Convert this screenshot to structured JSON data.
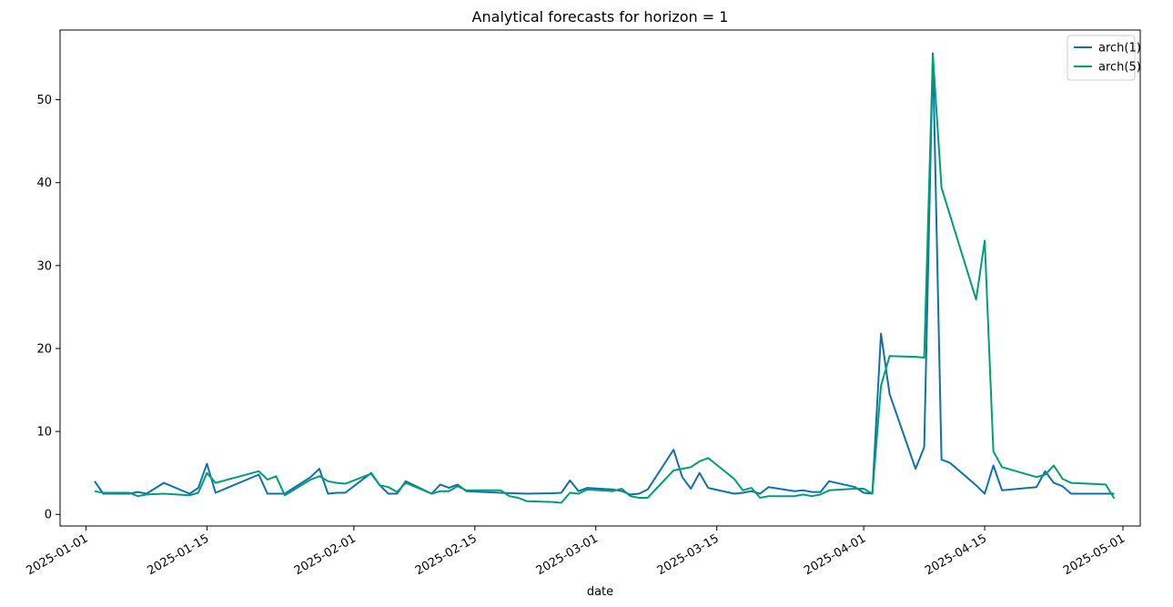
{
  "chart_data": {
    "type": "line",
    "title": "Analytical forecasts for horizon = 1",
    "xlabel": "date",
    "ylabel": "",
    "x_type": "date",
    "xlim": [
      "2024-12-29",
      "2025-05-03"
    ],
    "ylim": [
      -1.4,
      58.4
    ],
    "yticks": [
      0,
      10,
      20,
      30,
      40,
      50
    ],
    "xticks": [
      "2025-01-01",
      "2025-01-15",
      "2025-02-01",
      "2025-02-15",
      "2025-03-01",
      "2025-03-15",
      "2025-04-01",
      "2025-04-15",
      "2025-05-01"
    ],
    "legend_position": "top-right",
    "grid": false,
    "series": [
      {
        "name": "arch(1)",
        "color": "#1170aa",
        "points": [
          [
            "2025-01-02",
            4.0
          ],
          [
            "2025-01-03",
            2.5
          ],
          [
            "2025-01-06",
            2.5
          ],
          [
            "2025-01-07",
            2.7
          ],
          [
            "2025-01-08",
            2.5
          ],
          [
            "2025-01-10",
            3.8
          ],
          [
            "2025-01-13",
            2.5
          ],
          [
            "2025-01-14",
            3.2
          ],
          [
            "2025-01-15",
            6.1
          ],
          [
            "2025-01-16",
            2.6
          ],
          [
            "2025-01-21",
            4.8
          ],
          [
            "2025-01-22",
            2.5
          ],
          [
            "2025-01-23",
            2.5
          ],
          [
            "2025-01-24",
            2.5
          ],
          [
            "2025-01-27",
            4.5
          ],
          [
            "2025-01-28",
            5.5
          ],
          [
            "2025-01-29",
            2.5
          ],
          [
            "2025-01-30",
            2.6
          ],
          [
            "2025-01-31",
            2.6
          ],
          [
            "2025-02-03",
            5.0
          ],
          [
            "2025-02-04",
            3.5
          ],
          [
            "2025-02-05",
            2.5
          ],
          [
            "2025-02-06",
            2.5
          ],
          [
            "2025-02-07",
            4.0
          ],
          [
            "2025-02-10",
            2.5
          ],
          [
            "2025-02-11",
            3.6
          ],
          [
            "2025-02-12",
            3.2
          ],
          [
            "2025-02-13",
            3.6
          ],
          [
            "2025-02-14",
            2.8
          ],
          [
            "2025-02-18",
            2.6
          ],
          [
            "2025-02-21",
            2.5
          ],
          [
            "2025-02-24",
            2.55
          ],
          [
            "2025-02-25",
            2.6
          ],
          [
            "2025-02-26",
            4.1
          ],
          [
            "2025-02-27",
            2.8
          ],
          [
            "2025-02-28",
            3.2
          ],
          [
            "2025-03-03",
            3.0
          ],
          [
            "2025-03-04",
            2.8
          ],
          [
            "2025-03-05",
            2.4
          ],
          [
            "2025-03-06",
            2.5
          ],
          [
            "2025-03-07",
            3.0
          ],
          [
            "2025-03-10",
            7.8
          ],
          [
            "2025-03-11",
            4.5
          ],
          [
            "2025-03-12",
            3.1
          ],
          [
            "2025-03-13",
            5.0
          ],
          [
            "2025-03-14",
            3.2
          ],
          [
            "2025-03-17",
            2.5
          ],
          [
            "2025-03-18",
            2.6
          ],
          [
            "2025-03-19",
            2.8
          ],
          [
            "2025-03-20",
            2.5
          ],
          [
            "2025-03-21",
            3.3
          ],
          [
            "2025-03-24",
            2.8
          ],
          [
            "2025-03-25",
            2.9
          ],
          [
            "2025-03-26",
            2.7
          ],
          [
            "2025-03-27",
            2.7
          ],
          [
            "2025-03-28",
            4.0
          ],
          [
            "2025-03-31",
            3.3
          ],
          [
            "2025-04-01",
            2.6
          ],
          [
            "2025-04-02",
            2.5
          ],
          [
            "2025-04-03",
            21.8
          ],
          [
            "2025-04-04",
            14.5
          ],
          [
            "2025-04-07",
            5.5
          ],
          [
            "2025-04-08",
            8.1
          ],
          [
            "2025-04-09",
            55.6
          ],
          [
            "2025-04-10",
            6.6
          ],
          [
            "2025-04-11",
            6.2
          ],
          [
            "2025-04-14",
            3.5
          ],
          [
            "2025-04-15",
            2.5
          ],
          [
            "2025-04-16",
            5.9
          ],
          [
            "2025-04-17",
            2.9
          ],
          [
            "2025-04-21",
            3.3
          ],
          [
            "2025-04-22",
            5.2
          ],
          [
            "2025-04-23",
            3.8
          ],
          [
            "2025-04-24",
            3.4
          ],
          [
            "2025-04-25",
            2.5
          ],
          [
            "2025-04-28",
            2.5
          ],
          [
            "2025-04-29",
            2.5
          ],
          [
            "2025-04-30",
            2.5
          ]
        ]
      },
      {
        "name": "arch(5)",
        "color": "#009e73",
        "points": [
          [
            "2025-01-02",
            2.8
          ],
          [
            "2025-01-03",
            2.6
          ],
          [
            "2025-01-06",
            2.6
          ],
          [
            "2025-01-07",
            2.2
          ],
          [
            "2025-01-08",
            2.4
          ],
          [
            "2025-01-10",
            2.5
          ],
          [
            "2025-01-13",
            2.3
          ],
          [
            "2025-01-14",
            2.6
          ],
          [
            "2025-01-15",
            5.0
          ],
          [
            "2025-01-16",
            3.8
          ],
          [
            "2025-01-21",
            5.2
          ],
          [
            "2025-01-22",
            4.2
          ],
          [
            "2025-01-23",
            4.6
          ],
          [
            "2025-01-24",
            2.3
          ],
          [
            "2025-01-27",
            4.2
          ],
          [
            "2025-01-28",
            4.6
          ],
          [
            "2025-01-29",
            4.0
          ],
          [
            "2025-01-30",
            3.8
          ],
          [
            "2025-01-31",
            3.7
          ],
          [
            "2025-02-03",
            4.9
          ],
          [
            "2025-02-04",
            3.5
          ],
          [
            "2025-02-05",
            3.3
          ],
          [
            "2025-02-06",
            2.7
          ],
          [
            "2025-02-07",
            3.8
          ],
          [
            "2025-02-10",
            2.5
          ],
          [
            "2025-02-11",
            2.8
          ],
          [
            "2025-02-12",
            2.8
          ],
          [
            "2025-02-13",
            3.4
          ],
          [
            "2025-02-14",
            2.9
          ],
          [
            "2025-02-18",
            2.9
          ],
          [
            "2025-02-19",
            2.2
          ],
          [
            "2025-02-20",
            2.0
          ],
          [
            "2025-02-21",
            1.6
          ],
          [
            "2025-02-24",
            1.5
          ],
          [
            "2025-02-25",
            1.4
          ],
          [
            "2025-02-26",
            2.6
          ],
          [
            "2025-02-27",
            2.5
          ],
          [
            "2025-02-28",
            3.0
          ],
          [
            "2025-03-03",
            2.8
          ],
          [
            "2025-03-04",
            3.1
          ],
          [
            "2025-03-05",
            2.2
          ],
          [
            "2025-03-06",
            2.0
          ],
          [
            "2025-03-07",
            2.0
          ],
          [
            "2025-03-10",
            5.3
          ],
          [
            "2025-03-11",
            5.5
          ],
          [
            "2025-03-12",
            5.7
          ],
          [
            "2025-03-13",
            6.4
          ],
          [
            "2025-03-14",
            6.8
          ],
          [
            "2025-03-17",
            4.3
          ],
          [
            "2025-03-18",
            2.9
          ],
          [
            "2025-03-19",
            3.2
          ],
          [
            "2025-03-20",
            2.0
          ],
          [
            "2025-03-21",
            2.2
          ],
          [
            "2025-03-24",
            2.2
          ],
          [
            "2025-03-25",
            2.4
          ],
          [
            "2025-03-26",
            2.2
          ],
          [
            "2025-03-27",
            2.4
          ],
          [
            "2025-03-28",
            2.9
          ],
          [
            "2025-03-31",
            3.1
          ],
          [
            "2025-04-01",
            3.1
          ],
          [
            "2025-04-02",
            2.5
          ],
          [
            "2025-04-03",
            15.5
          ],
          [
            "2025-04-04",
            19.1
          ],
          [
            "2025-04-07",
            19.0
          ],
          [
            "2025-04-08",
            18.9
          ],
          [
            "2025-04-09",
            55.4
          ],
          [
            "2025-04-10",
            39.4
          ],
          [
            "2025-04-14",
            25.9
          ],
          [
            "2025-04-15",
            33.0
          ],
          [
            "2025-04-16",
            7.6
          ],
          [
            "2025-04-17",
            5.7
          ],
          [
            "2025-04-21",
            4.5
          ],
          [
            "2025-04-22",
            4.8
          ],
          [
            "2025-04-23",
            5.9
          ],
          [
            "2025-04-24",
            4.3
          ],
          [
            "2025-04-25",
            3.8
          ],
          [
            "2025-04-29",
            3.6
          ],
          [
            "2025-04-30",
            1.9
          ]
        ]
      }
    ]
  }
}
